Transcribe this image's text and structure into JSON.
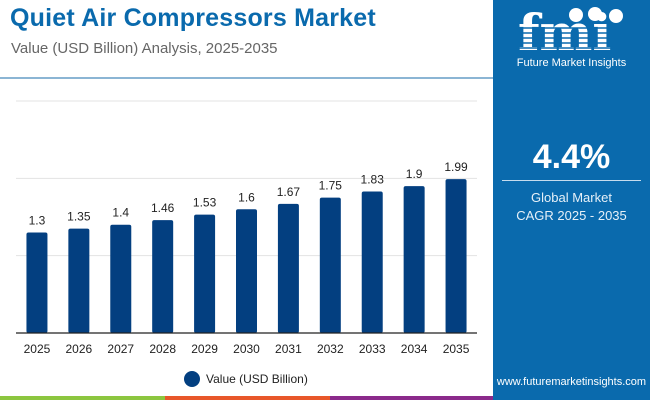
{
  "header": {
    "title": "Quiet Air Compressors Market",
    "subtitle": "Value (USD Billion) Analysis, 2025-2035"
  },
  "brand": {
    "logo_text": "fmi",
    "logo_name": "Future Market Insights",
    "website": "www.futuremarketinsights.com"
  },
  "highlight": {
    "value": "4.4%",
    "label_line1": "Global Market",
    "label_line2": "CAGR 2025 - 2035"
  },
  "colors": {
    "title": "#0a6aad",
    "bar": "#033f80",
    "panel": "#0a6aad",
    "stripe_green": "#8cc63f",
    "stripe_orange": "#e8572a",
    "stripe_purple": "#8b2a8b"
  },
  "chart_data": {
    "type": "bar",
    "title": "Quiet Air Compressors Market",
    "subtitle": "Value (USD Billion) Analysis, 2025-2035",
    "xlabel": "",
    "ylabel": "",
    "categories": [
      "2025",
      "2026",
      "2027",
      "2028",
      "2029",
      "2030",
      "2031",
      "2032",
      "2033",
      "2034",
      "2035"
    ],
    "series": [
      {
        "name": "Value (USD Billion)",
        "values": [
          1.3,
          1.35,
          1.4,
          1.46,
          1.53,
          1.6,
          1.67,
          1.75,
          1.83,
          1.9,
          1.99
        ]
      }
    ],
    "data_labels": [
      "1.3",
      "1.35",
      "1.4",
      "1.46",
      "1.53",
      "1.6",
      "1.67",
      "1.75",
      "1.83",
      "1.9",
      "1.99"
    ],
    "ylim": [
      0,
      3
    ],
    "gridlines": [
      1,
      2,
      3
    ],
    "grid": true,
    "legend": "bottom-center"
  }
}
